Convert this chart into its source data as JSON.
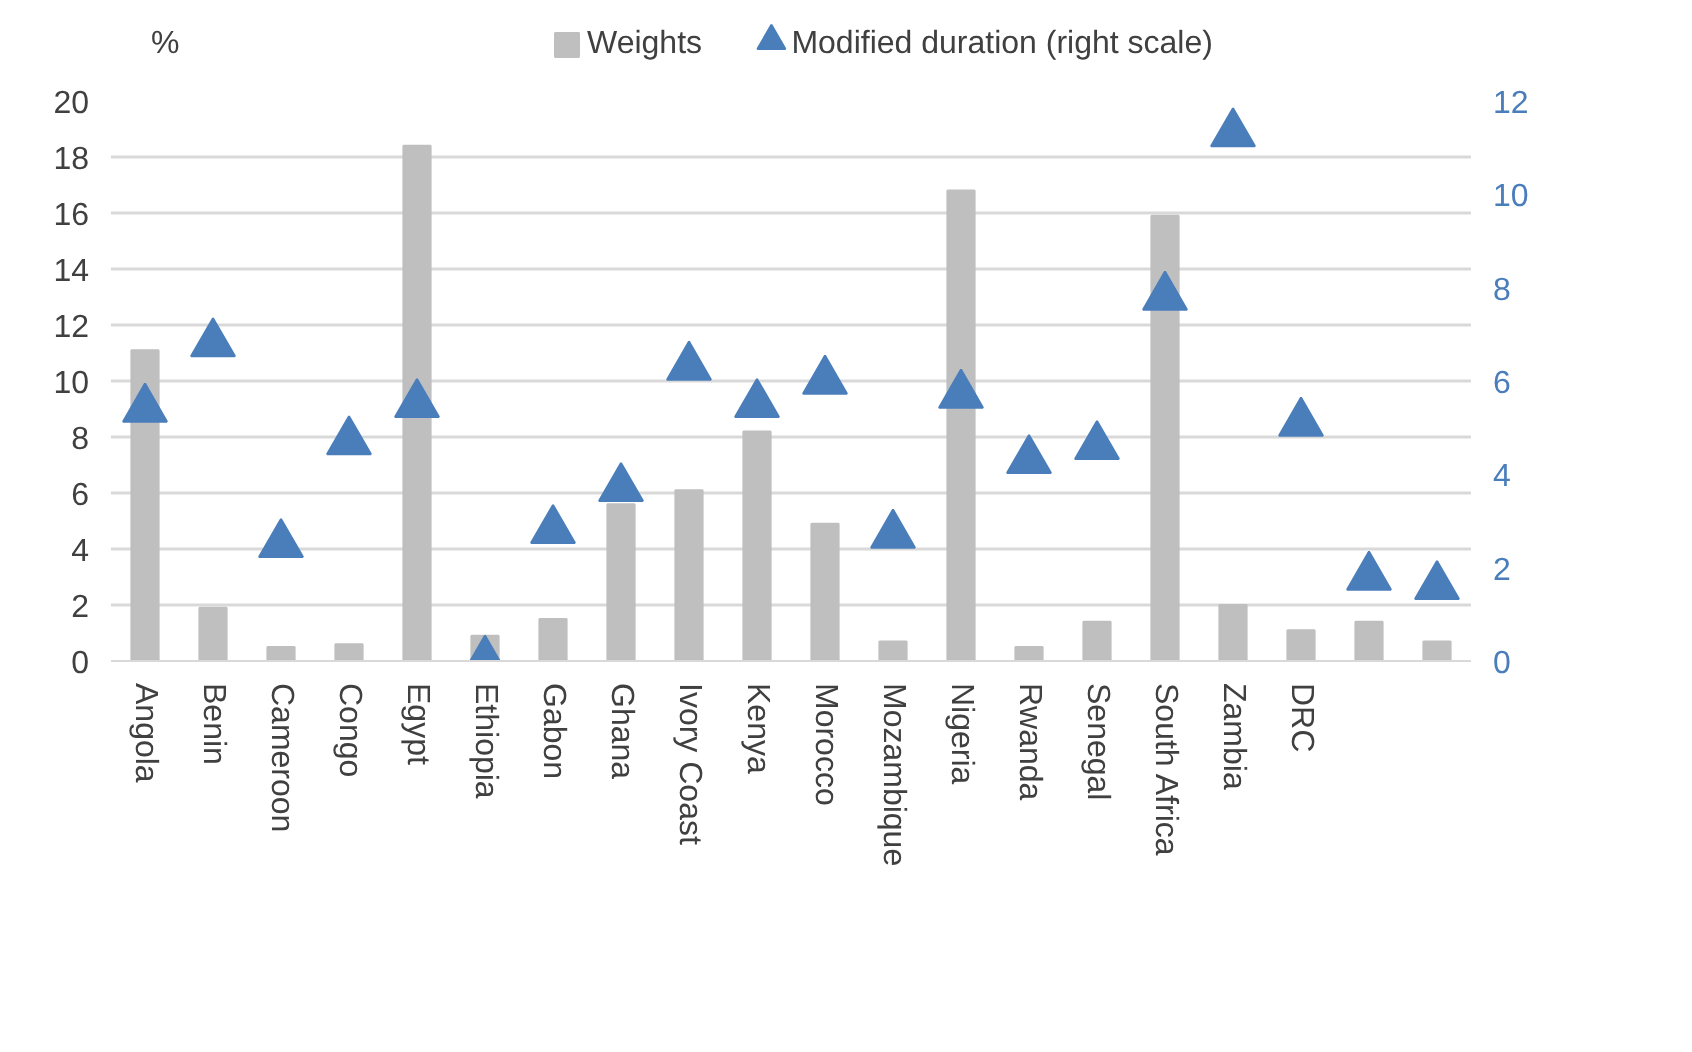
{
  "chart_data": {
    "type": "bar",
    "ylabel": "%",
    "categories": [
      "Angola",
      "Benin",
      "Cameroon",
      "Congo",
      "Egypt",
      "Ethiopia",
      "Gabon",
      "Ghana",
      "Ivory Coast",
      "Kenya",
      "Morocco",
      "Mozambique",
      "Nigeria",
      "Rwanda",
      "Senegal",
      "South Africa",
      "Zambia",
      "DRC",
      null,
      null
    ],
    "series": [
      {
        "name": "Weights",
        "type": "bar",
        "color": "#bfbfbf",
        "values": [
          11.1,
          1.9,
          0.5,
          0.6,
          18.4,
          0.9,
          1.5,
          5.6,
          6.1,
          8.2,
          4.9,
          0.7,
          16.8,
          0.5,
          1.4,
          15.9,
          2.0,
          1.1,
          1.4,
          0.7
        ]
      },
      {
        "name": "Modified duration (right scale)",
        "type": "scatter",
        "axis": "y2",
        "marker": "triangle",
        "color": "#4a7ebb",
        "values": [
          5.4,
          6.8,
          2.5,
          4.7,
          5.5,
          0,
          2.8,
          3.7,
          6.3,
          5.5,
          6.0,
          2.7,
          5.7,
          4.3,
          4.6,
          7.8,
          11.3,
          5.1,
          1.8,
          1.6
        ]
      }
    ],
    "ylim": [
      0,
      20
    ],
    "yticks": [
      0,
      2,
      4,
      6,
      8,
      10,
      12,
      14,
      16,
      18,
      20
    ],
    "y2lim": [
      0,
      12
    ],
    "y2ticks": [
      0,
      2,
      4,
      6,
      8,
      10,
      12
    ],
    "grid": "y",
    "legend": "top"
  }
}
